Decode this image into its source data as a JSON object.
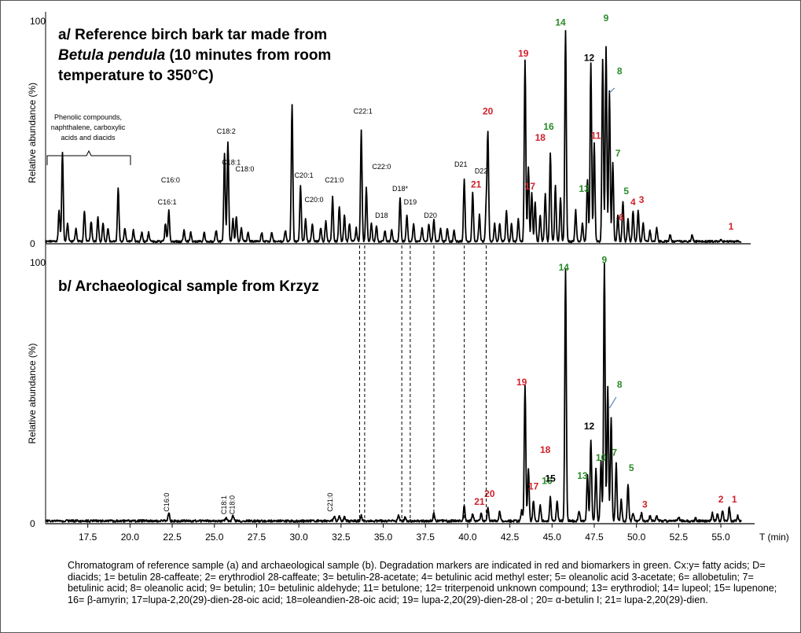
{
  "chart_data": [
    {
      "type": "line",
      "panel": "a",
      "title": "a/ Reference birch bark tar made from",
      "title_italic": "Betula pendula",
      "title_rest": " (10 minutes from room",
      "title_line3": "temperature to 350°C)",
      "ylabel": "Relative abundance (%)",
      "y_max_label": "100",
      "y_zero_label": "0",
      "ylim": [
        0,
        100
      ],
      "xlim": [
        15,
        57
      ],
      "annotation_phenolic": [
        "Phenolic compounds,",
        "naphthalene, carboxylic",
        "acids and diacids"
      ],
      "peaks": [
        [
          15.8,
          14
        ],
        [
          16.0,
          40
        ],
        [
          16.3,
          8
        ],
        [
          16.8,
          6
        ],
        [
          17.3,
          14
        ],
        [
          17.7,
          9
        ],
        [
          18.1,
          11
        ],
        [
          18.4,
          8
        ],
        [
          18.7,
          6
        ],
        [
          19.3,
          24
        ],
        [
          19.7,
          6
        ],
        [
          20.2,
          5
        ],
        [
          20.7,
          4
        ],
        [
          21.1,
          4
        ],
        [
          22.1,
          8
        ],
        [
          22.3,
          14
        ],
        [
          23.2,
          5
        ],
        [
          23.6,
          4
        ],
        [
          24.4,
          4
        ],
        [
          25.1,
          5
        ],
        [
          25.6,
          40
        ],
        [
          25.8,
          45
        ],
        [
          26.1,
          10
        ],
        [
          26.3,
          11
        ],
        [
          26.6,
          6
        ],
        [
          27.0,
          4
        ],
        [
          27.8,
          4
        ],
        [
          28.4,
          4
        ],
        [
          29.2,
          5
        ],
        [
          29.6,
          62
        ],
        [
          30.1,
          25
        ],
        [
          30.4,
          10
        ],
        [
          30.8,
          8
        ],
        [
          31.3,
          6
        ],
        [
          31.6,
          9
        ],
        [
          32.0,
          20
        ],
        [
          32.4,
          16
        ],
        [
          32.7,
          12
        ],
        [
          33.0,
          8
        ],
        [
          33.4,
          6
        ],
        [
          33.7,
          50
        ],
        [
          34.0,
          24
        ],
        [
          34.3,
          8
        ],
        [
          34.6,
          7
        ],
        [
          35.1,
          5
        ],
        [
          35.5,
          5
        ],
        [
          36.0,
          20
        ],
        [
          36.4,
          12
        ],
        [
          36.8,
          8
        ],
        [
          37.3,
          6
        ],
        [
          37.7,
          8
        ],
        [
          38.0,
          10
        ],
        [
          38.4,
          6
        ],
        [
          38.8,
          6
        ],
        [
          39.2,
          5
        ],
        [
          39.8,
          28
        ],
        [
          40.3,
          22
        ],
        [
          40.7,
          12
        ],
        [
          41.1,
          16
        ],
        [
          41.2,
          48
        ],
        [
          41.6,
          8
        ],
        [
          41.9,
          8
        ],
        [
          42.3,
          14
        ],
        [
          42.6,
          8
        ],
        [
          43.0,
          10
        ],
        [
          43.4,
          82
        ],
        [
          43.6,
          34
        ],
        [
          43.8,
          22
        ],
        [
          44.0,
          18
        ],
        [
          44.3,
          12
        ],
        [
          44.6,
          22
        ],
        [
          44.9,
          40
        ],
        [
          45.2,
          25
        ],
        [
          45.5,
          20
        ],
        [
          45.8,
          95
        ],
        [
          46.4,
          14
        ],
        [
          46.8,
          8
        ],
        [
          47.1,
          28
        ],
        [
          47.3,
          80
        ],
        [
          47.5,
          44
        ],
        [
          48.0,
          82
        ],
        [
          48.2,
          88
        ],
        [
          48.4,
          68
        ],
        [
          48.6,
          36
        ],
        [
          48.9,
          12
        ],
        [
          49.2,
          18
        ],
        [
          49.5,
          10
        ],
        [
          49.8,
          14
        ],
        [
          50.1,
          14
        ],
        [
          50.4,
          8
        ],
        [
          50.8,
          5
        ],
        [
          51.2,
          6
        ],
        [
          52.0,
          3
        ],
        [
          53.3,
          3
        ],
        [
          55.0,
          1
        ]
      ],
      "peak_labels": [
        {
          "x": 45.5,
          "y": 97,
          "text": "14",
          "color": "green"
        },
        {
          "x": 48.2,
          "y": 99,
          "text": "9",
          "color": "green"
        },
        {
          "x": 43.3,
          "y": 83,
          "text": "19",
          "color": "red"
        },
        {
          "x": 47.2,
          "y": 81,
          "text": "12",
          "color": "black"
        },
        {
          "x": 49.0,
          "y": 75,
          "text": "8",
          "color": "green"
        },
        {
          "x": 41.2,
          "y": 57,
          "text": "20",
          "color": "red"
        },
        {
          "x": 44.8,
          "y": 50,
          "text": "16",
          "color": "green"
        },
        {
          "x": 44.3,
          "y": 45,
          "text": "18",
          "color": "red"
        },
        {
          "x": 47.6,
          "y": 46,
          "text": "11",
          "color": "red"
        },
        {
          "x": 48.9,
          "y": 38,
          "text": "7",
          "color": "green"
        },
        {
          "x": 40.5,
          "y": 24,
          "text": "21",
          "color": "red"
        },
        {
          "x": 43.7,
          "y": 23,
          "text": "17",
          "color": "red"
        },
        {
          "x": 46.9,
          "y": 22,
          "text": "13",
          "color": "green"
        },
        {
          "x": 49.4,
          "y": 21,
          "text": "5",
          "color": "green"
        },
        {
          "x": 49.8,
          "y": 16,
          "text": "4",
          "color": "red"
        },
        {
          "x": 50.3,
          "y": 17,
          "text": "3",
          "color": "red"
        },
        {
          "x": 49.1,
          "y": 9,
          "text": "6",
          "color": "red"
        },
        {
          "x": 55.6,
          "y": 5,
          "text": "1",
          "color": "red"
        }
      ],
      "compound_labels": [
        {
          "x": 22.2,
          "y": 17,
          "text": "C16:1"
        },
        {
          "x": 22.4,
          "y": 27,
          "text": "C16:0"
        },
        {
          "x": 25.7,
          "y": 49,
          "text": "C18:2"
        },
        {
          "x": 26.0,
          "y": 35,
          "text": "C18:1"
        },
        {
          "x": 26.8,
          "y": 32,
          "text": "C18:0"
        },
        {
          "x": 30.3,
          "y": 29,
          "text": "C20:1"
        },
        {
          "x": 30.9,
          "y": 18,
          "text": "C20:0"
        },
        {
          "x": 32.1,
          "y": 27,
          "text": "C21:0"
        },
        {
          "x": 33.8,
          "y": 58,
          "text": "C22:1"
        },
        {
          "x": 34.9,
          "y": 33,
          "text": "C22:0"
        },
        {
          "x": 36.0,
          "y": 23,
          "text": "D18*"
        },
        {
          "x": 34.9,
          "y": 11,
          "text": "D18"
        },
        {
          "x": 36.6,
          "y": 17,
          "text": "D19"
        },
        {
          "x": 37.8,
          "y": 11,
          "text": "D20"
        },
        {
          "x": 39.6,
          "y": 34,
          "text": "D21"
        },
        {
          "x": 40.8,
          "y": 31,
          "text": "D22"
        }
      ]
    },
    {
      "type": "line",
      "panel": "b",
      "title": "b/ Archaeological sample from Krzyz",
      "ylabel": "Relative abundance (%)",
      "y_max_label": "100",
      "y_zero_label": "0",
      "ylim": [
        0,
        100
      ],
      "xlim": [
        15,
        57
      ],
      "xlabel": "T (min)",
      "xticks": [
        17.5,
        20.0,
        22.5,
        25.0,
        27.5,
        30.0,
        32.5,
        35.0,
        37.5,
        40.0,
        42.5,
        45.0,
        47.5,
        50.0,
        52.5,
        55.0
      ],
      "xtick_labels": [
        "17.5",
        "20.0",
        "22.5",
        "25.0",
        "27.5",
        "30.0",
        "32.5",
        "35.0",
        "37.5",
        "40.0",
        "42.5",
        "45.0",
        "47.5",
        "50.0",
        "52.5",
        "55.0"
      ],
      "peaks": [
        [
          22.3,
          3
        ],
        [
          25.7,
          1
        ],
        [
          26.1,
          2
        ],
        [
          32.1,
          2
        ],
        [
          32.4,
          2
        ],
        [
          32.7,
          1.5
        ],
        [
          33.7,
          2
        ],
        [
          35.9,
          2
        ],
        [
          36.3,
          1.5
        ],
        [
          38.0,
          3
        ],
        [
          39.8,
          6
        ],
        [
          40.3,
          3
        ],
        [
          40.8,
          3
        ],
        [
          41.2,
          5
        ],
        [
          41.9,
          4
        ],
        [
          43.2,
          4
        ],
        [
          43.4,
          52
        ],
        [
          43.6,
          20
        ],
        [
          43.9,
          8
        ],
        [
          44.3,
          6
        ],
        [
          44.9,
          9
        ],
        [
          45.3,
          8
        ],
        [
          45.8,
          97
        ],
        [
          46.6,
          4
        ],
        [
          47.1,
          18
        ],
        [
          47.3,
          31
        ],
        [
          47.6,
          20
        ],
        [
          47.9,
          23
        ],
        [
          48.1,
          100
        ],
        [
          48.3,
          52
        ],
        [
          48.5,
          40
        ],
        [
          48.8,
          22
        ],
        [
          49.1,
          8
        ],
        [
          49.5,
          14
        ],
        [
          49.8,
          3
        ],
        [
          50.3,
          3
        ],
        [
          50.8,
          2
        ],
        [
          51.2,
          2
        ],
        [
          52.5,
          1.5
        ],
        [
          53.5,
          1
        ],
        [
          54.5,
          3
        ],
        [
          54.8,
          3
        ],
        [
          55.1,
          4
        ],
        [
          55.5,
          5
        ],
        [
          56.0,
          2
        ]
      ],
      "peak_labels": [
        {
          "x": 45.7,
          "y": 96,
          "text": "14",
          "color": "green"
        },
        {
          "x": 48.1,
          "y": 99,
          "text": "9",
          "color": "green"
        },
        {
          "x": 43.2,
          "y": 52,
          "text": "19",
          "color": "red"
        },
        {
          "x": 47.2,
          "y": 35,
          "text": "12",
          "color": "black"
        },
        {
          "x": 49.0,
          "y": 51,
          "text": "8",
          "color": "green"
        },
        {
          "x": 44.6,
          "y": 26,
          "text": "18",
          "color": "red"
        },
        {
          "x": 44.7,
          "y": 14,
          "text": "16",
          "color": "green"
        },
        {
          "x": 48.7,
          "y": 25,
          "text": "7",
          "color": "green"
        },
        {
          "x": 47.9,
          "y": 23,
          "text": "10",
          "color": "green"
        },
        {
          "x": 46.8,
          "y": 16,
          "text": "13",
          "color": "green"
        },
        {
          "x": 44.9,
          "y": 15,
          "text": "15",
          "color": "black"
        },
        {
          "x": 43.9,
          "y": 12,
          "text": "17",
          "color": "red"
        },
        {
          "x": 49.7,
          "y": 19,
          "text": "5",
          "color": "green"
        },
        {
          "x": 41.3,
          "y": 9,
          "text": "20",
          "color": "red"
        },
        {
          "x": 40.7,
          "y": 6,
          "text": "21",
          "color": "red"
        },
        {
          "x": 50.5,
          "y": 5,
          "text": "3",
          "color": "red"
        },
        {
          "x": 55.0,
          "y": 7,
          "text": "2",
          "color": "red"
        },
        {
          "x": 55.8,
          "y": 7,
          "text": "1",
          "color": "red"
        }
      ],
      "compound_labels": [
        {
          "x": 22.3,
          "y": 4,
          "text": "C16:0"
        },
        {
          "x": 25.7,
          "y": 3,
          "text": "C18:1"
        },
        {
          "x": 26.2,
          "y": 3,
          "text": "C18:0"
        },
        {
          "x": 32.0,
          "y": 4,
          "text": "C21:0"
        }
      ]
    }
  ],
  "caption": {
    "lead": "Chromatogram of reference sample (a) and archaeological sample (b). Degradation markers are indicated in red and biomarkers in green.",
    "body": "Cx:y= fatty acids; D= diacids; 1= betulin 28-caffeate; 2= erythrodiol 28-caffeate; 3= betulin-28-acetate; 4= betulinic acid methyl ester; 5= oleanolic acid 3-acetate; 6= allobetulin; 7= betulinic acid; 8= oleanolic acid; 9= betulin; 10= betulinic aldehyde; 11= betulone; 12= triterpenoid unknown compound; 13= erythrodiol; 14= lupeol; 15= lupenone; 16= β-amyrin; 17=lupa-2,20(29)-dien-28-oic acid; 18=oleandien-28-oic acid; 19= lupa-2,20(29)-dien-28-ol ; 20= α-betulin I; 21= lupa-2,20(29)-dien."
  },
  "colors": {
    "red": "#d0202a",
    "green": "#2a8a2a",
    "black": "#000000",
    "blue": "#3a6fb0"
  }
}
